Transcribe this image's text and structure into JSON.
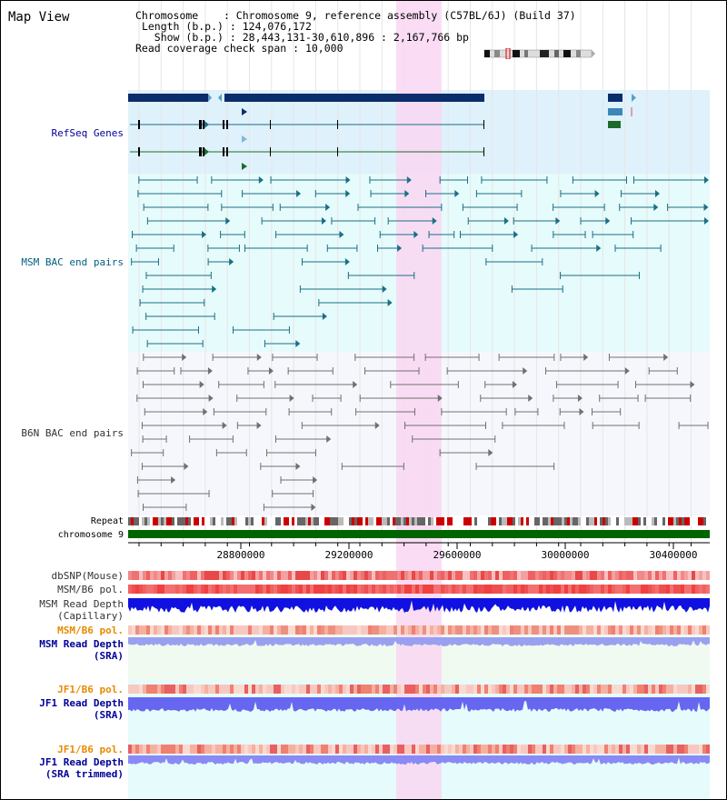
{
  "header": {
    "title": "Map View",
    "chromosome_key": "Chromosome",
    "chromosome_val": "Chromosome 9, reference assembly (C57BL/6J) (Build 37)",
    "length_key": "Length (b.p.)",
    "length_val": "124,076,172",
    "show_key": "Show (b.p.)",
    "show_val": "28,443,131-30,610,896 : 2,167,766 bp",
    "coverage_key": "Read coverage check span",
    "coverage_val": "10,000"
  },
  "tracks": {
    "refseq": "RefSeq Genes",
    "msm_bac": "MSM BAC end pairs",
    "b6n_bac": "B6N BAC end pairs",
    "repeat": "Repeat",
    "chromosome": "chromosome 9",
    "dbsnp": "dbSNP(Mouse)",
    "msm_b6_pol": "MSM/B6 pol.",
    "msm_depth_cap_1": "MSM Read Depth",
    "msm_depth_cap_2": "(Capillary)",
    "msm_b6_pol_sra": "MSM/B6 pol.",
    "msm_depth_sra_1": "MSM Read Depth",
    "msm_depth_sra_2": "(SRA)",
    "jf1_b6_pol": "JF1/B6 pol.",
    "jf1_depth_1": "JF1 Read Depth",
    "jf1_depth_2": "(SRA)",
    "jf1_b6_pol_t": "JF1/B6 pol.",
    "jf1_depth_t_1": "JF1 Read Depth",
    "jf1_depth_t_2": "(SRA trimmed)"
  },
  "axis": {
    "ticks": [
      "28800000",
      "29200000",
      "29600000",
      "30000000",
      "30400000"
    ]
  },
  "colors": {
    "refseq_dark": "#0a2d6b",
    "msm_teal": "#1a6f86",
    "b6n_gray": "#707070",
    "highlight": "#f9d7f2",
    "chromosome_green": "#006400",
    "label_navy": "#000099",
    "label_teal": "#005f7f",
    "label_orange": "#e88a00"
  }
}
